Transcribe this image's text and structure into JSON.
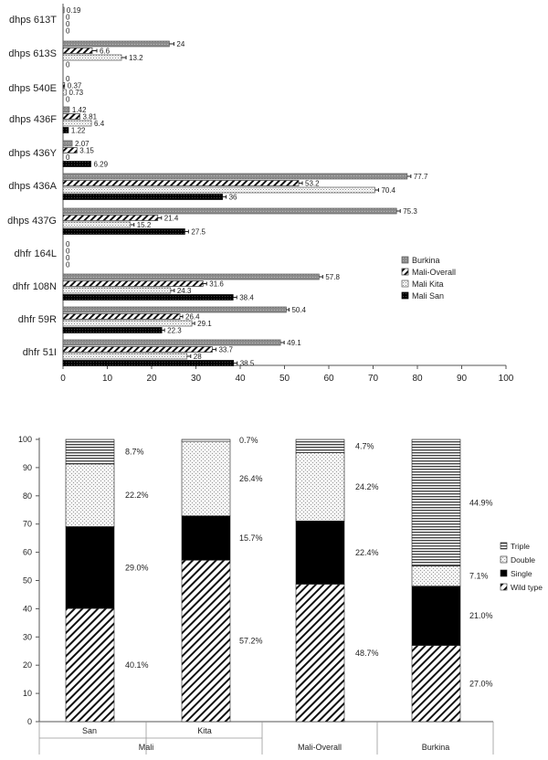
{
  "chart_data": [
    {
      "type": "bar",
      "orientation": "horizontal",
      "categories": [
        "dhps 613T",
        "dhps 613S",
        "dhps 540E",
        "dhps 436F",
        "dhps 436Y",
        "dhps 436A",
        "dhps 437G",
        "dhfr 164L",
        "dhfr 108N",
        "dhfr 59R",
        "dhfr 51I"
      ],
      "series": [
        {
          "name": "Burkina",
          "values": [
            0.19,
            24,
            0,
            1.42,
            2.07,
            77.7,
            75.3,
            0,
            57.8,
            50.4,
            49.1
          ],
          "labels": [
            "0.19",
            "24",
            "0",
            "1.42",
            "2.07",
            "77.7",
            "75.3",
            "0",
            "57.8",
            "50.4",
            "49.1"
          ]
        },
        {
          "name": "Mali-Overall",
          "values": [
            0,
            6.6,
            0.37,
            3.81,
            3.15,
            53.2,
            21.4,
            0,
            31.6,
            26.4,
            33.7
          ],
          "labels": [
            "0",
            "6.6",
            "0.37",
            "3.81",
            "3.15",
            "53.2",
            "21.4",
            "0",
            "31.6",
            "26.4",
            "33.7"
          ]
        },
        {
          "name": "Mali Kita",
          "values": [
            0,
            13.2,
            0.73,
            6.4,
            0,
            70.4,
            15.2,
            0,
            24.3,
            29.1,
            28
          ],
          "labels": [
            "0",
            "13.2",
            "0.73",
            "6.4",
            "0",
            "70.4",
            "15.2",
            "0",
            "24.3",
            "29.1",
            "28"
          ]
        },
        {
          "name": "Mali San",
          "values": [
            0,
            0,
            0,
            1.22,
            6.29,
            36,
            27.5,
            0,
            38.4,
            22.3,
            38.5
          ],
          "labels": [
            "0",
            "0",
            "0",
            "1.22",
            "6.29",
            "36",
            "27.5",
            "0",
            "38.4",
            "22.3",
            "38.5"
          ]
        }
      ],
      "xlim": [
        0,
        100
      ],
      "xticks": [
        "0",
        "10",
        "20",
        "30",
        "40",
        "50",
        "60",
        "70",
        "80",
        "90",
        "100"
      ],
      "error_bars": true,
      "legend_position": "right",
      "colors": {
        "Burkina": "#8c8c8c",
        "Mali-Overall": "#ffffff",
        "Mali Kita": "#ececec",
        "Mali San": "#000000"
      }
    },
    {
      "type": "bar",
      "stacked": true,
      "group_labels": [
        "San",
        "Kita",
        "Mali-Overall",
        "Burkina"
      ],
      "outer_group_labels": [
        "Mali",
        "Mali-Overall",
        "Burkina"
      ],
      "series": [
        {
          "name": "Wild type",
          "values": [
            40.1,
            57.2,
            48.7,
            27.0
          ],
          "labels": [
            "40.1%",
            "57.2%",
            "48.7%",
            "27.0%"
          ]
        },
        {
          "name": "Single",
          "values": [
            29.0,
            15.7,
            22.4,
            21.0
          ],
          "labels": [
            "29.0%",
            "15.7%",
            "22.4%",
            "21.0%"
          ]
        },
        {
          "name": "Double",
          "values": [
            22.2,
            26.4,
            24.2,
            7.1
          ],
          "labels": [
            "22.2%",
            "26.4%",
            "24.2%",
            "7.1%"
          ]
        },
        {
          "name": "Triple",
          "values": [
            8.7,
            0.7,
            4.7,
            44.9
          ],
          "labels": [
            "8.7%",
            "0.7%",
            "4.7%",
            "44.9%"
          ]
        }
      ],
      "legend_order": [
        "Triple",
        "Double",
        "Single",
        "Wild type"
      ],
      "ylim": [
        0,
        100
      ],
      "yticks": [
        "0",
        "10",
        "20",
        "30",
        "40",
        "50",
        "60",
        "70",
        "80",
        "90",
        "100"
      ],
      "legend_position": "right",
      "colors": {
        "Wild type": "#ffffff",
        "Single": "#000000",
        "Double": "#ececec",
        "Triple": "#9a9a9a"
      }
    }
  ]
}
